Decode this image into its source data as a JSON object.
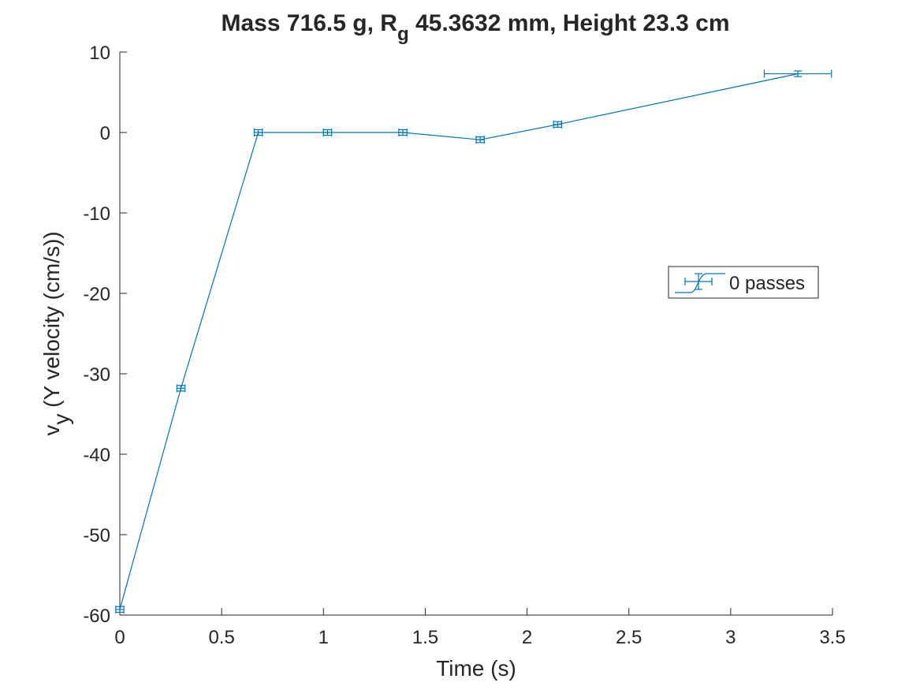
{
  "chart_data": {
    "type": "line",
    "title": {
      "prefix": "Mass 716.5 g, R",
      "subscript": "g",
      "suffix": " 45.3632 mm,  Height 23.3 cm"
    },
    "xlabel": "Time (s)",
    "ylabel": {
      "prefix": "v",
      "subscript": "y",
      "suffix": " (Y velocity (cm/s))"
    },
    "xlim": [
      0,
      3.5
    ],
    "ylim": [
      -60,
      10
    ],
    "xticks": [
      0,
      0.5,
      1,
      1.5,
      2,
      2.5,
      3,
      3.5
    ],
    "xtick_labels": [
      "0",
      "0.5",
      "1",
      "1.5",
      "2",
      "2.5",
      "3",
      "3.5"
    ],
    "yticks": [
      -60,
      -50,
      -40,
      -30,
      -20,
      -10,
      0,
      10
    ],
    "ytick_labels": [
      "-60",
      "-50",
      "-40",
      "-30",
      "-20",
      "-10",
      "0",
      "10"
    ],
    "grid": false,
    "legend": {
      "placement": "right",
      "entries": [
        "0 passes"
      ]
    },
    "series": [
      {
        "name": "0 passes",
        "color": "#0072BD",
        "marker": "errorbar",
        "x": [
          0,
          0.3,
          0.68,
          1.02,
          1.39,
          1.77,
          2.15,
          3.33
        ],
        "y": [
          -59.3,
          -31.8,
          0,
          0,
          0,
          -0.9,
          1.0,
          7.3
        ],
        "x_err": [
          0.02,
          0.02,
          0.02,
          0.02,
          0.02,
          0.02,
          0.02,
          0.165
        ],
        "y_err": [
          0.35,
          0.35,
          0.35,
          0.35,
          0.35,
          0.35,
          0.35,
          0.35
        ]
      }
    ]
  }
}
